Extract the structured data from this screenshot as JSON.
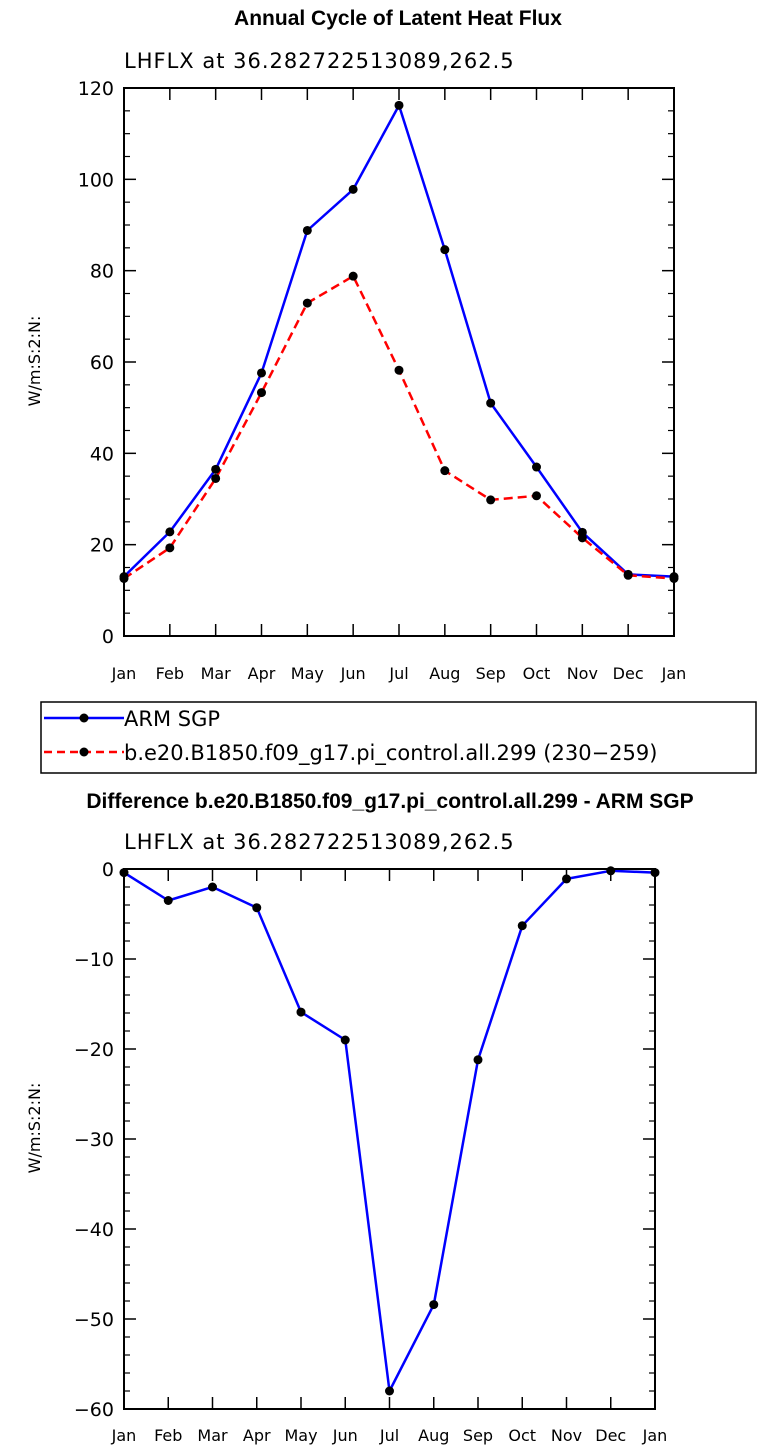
{
  "chart_data": [
    {
      "type": "line",
      "title": "Annual Cycle of Latent Heat Flux",
      "subtitle": "LHFLX at 36.282722513089,262.5",
      "ylabel": "W/m:S:2:N:",
      "xlabel": "",
      "categories": [
        "Jan",
        "Feb",
        "Mar",
        "Apr",
        "May",
        "Jun",
        "Jul",
        "Aug",
        "Sep",
        "Oct",
        "Nov",
        "Dec",
        "Jan"
      ],
      "ylim": [
        0,
        120
      ],
      "yticks": [
        0,
        20,
        40,
        60,
        80,
        100,
        120
      ],
      "ytick_labels": [
        "0",
        "20",
        "40",
        "60",
        "80",
        "100",
        "120"
      ],
      "series": [
        {
          "name": "ARM SGP",
          "color": "#0000ff",
          "dash": "solid",
          "values": [
            13.0,
            22.8,
            36.5,
            57.6,
            88.8,
            97.8,
            116.2,
            84.6,
            51.0,
            37.0,
            22.7,
            13.5,
            13.0
          ]
        },
        {
          "name": "b.e20.B1850.f09_g17.pi_control.all.299 (230-259)",
          "color": "#ff0000",
          "dash": "dashed",
          "values": [
            12.6,
            19.3,
            34.5,
            53.3,
            72.9,
            78.8,
            58.2,
            36.2,
            29.8,
            30.7,
            21.5,
            13.3,
            12.6
          ]
        }
      ],
      "legend": {
        "position": "bottom",
        "entries": [
          "ARM SGP",
          "b.e20.B1850.f09_g17.pi_control.all.299 (230−259)"
        ]
      }
    },
    {
      "type": "line",
      "title": "Difference b.e20.B1850.f09_g17.pi_control.all.299 - ARM SGP",
      "subtitle": "LHFLX at 36.282722513089,262.5",
      "ylabel": "W/m:S:2:N:",
      "xlabel": "",
      "categories": [
        "Jan",
        "Feb",
        "Mar",
        "Apr",
        "May",
        "Jun",
        "Jul",
        "Aug",
        "Sep",
        "Oct",
        "Nov",
        "Dec",
        "Jan"
      ],
      "ylim": [
        -60,
        0
      ],
      "yticks": [
        -60,
        -50,
        -40,
        -30,
        -20,
        -10,
        0
      ],
      "ytick_labels": [
        "−60",
        "−50",
        "−40",
        "−30",
        "−20",
        "−10",
        "0"
      ],
      "series": [
        {
          "name": "Difference",
          "color": "#0000ff",
          "dash": "solid",
          "values": [
            -0.4,
            -3.5,
            -2.0,
            -4.3,
            -15.9,
            -19.0,
            -58.0,
            -48.4,
            -21.2,
            -6.3,
            -1.1,
            -0.2,
            -0.4
          ]
        }
      ]
    }
  ]
}
